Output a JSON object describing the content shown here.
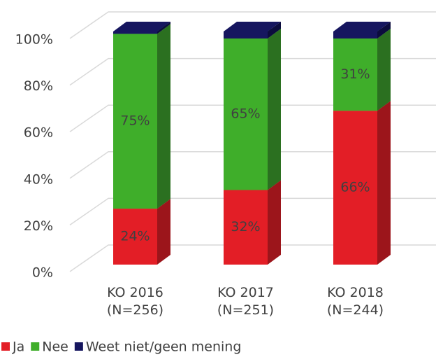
{
  "chart_data": {
    "type": "bar3d_stacked",
    "categories": [
      "KO 2016\n(N=256)",
      "KO 2017\n(N=251)",
      "KO 2018\n(N=244)"
    ],
    "series": [
      {
        "name": "Ja",
        "color": "#e31e26",
        "side": "#9c151b",
        "values": [
          24,
          32,
          66
        ],
        "value_labels": [
          "24%",
          "32%",
          "66%"
        ]
      },
      {
        "name": "Nee",
        "color": "#3fae2a",
        "side": "#2b7020",
        "values": [
          75,
          65,
          31
        ],
        "value_labels": [
          "75%",
          "65%",
          "31%"
        ]
      },
      {
        "name": "Weet niet/geen mening",
        "color": "#16165f",
        "side": "#0c0c3e",
        "values": [
          1,
          3,
          3
        ]
      }
    ],
    "ylim": [
      0,
      100
    ],
    "yticks": [
      {
        "value": 0,
        "label": "0%"
      },
      {
        "value": 20,
        "label": "20%"
      },
      {
        "value": 40,
        "label": "40%"
      },
      {
        "value": 60,
        "label": "60%"
      },
      {
        "value": 80,
        "label": "80%"
      },
      {
        "value": 100,
        "label": "100%"
      }
    ],
    "grid": true,
    "legend": "bottom-left"
  }
}
